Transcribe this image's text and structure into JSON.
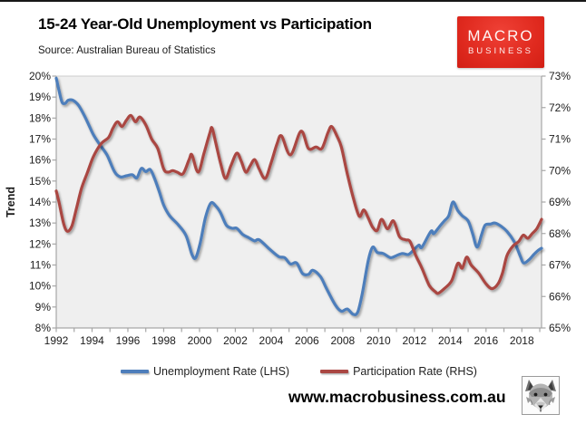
{
  "header": {
    "title": "15-24 Year-Old Unemployment vs Participation",
    "source": "Source: Australian Bureau of Statistics",
    "logo": {
      "line1": "MACRO",
      "line2": "BUSINESS",
      "bg_color": "#e02a1f"
    }
  },
  "footer": {
    "website": "www.macrobusiness.com.au",
    "wolf_logo": "wolf-head-logo"
  },
  "chart_data": {
    "type": "line",
    "title": "15-24 Year-Old Unemployment vs Participation",
    "source": "Australian Bureau of Statistics",
    "plot_bg": "#efefef",
    "grid": false,
    "legend_position": "bottom",
    "x": {
      "min": 1992,
      "max": 2019.1,
      "tick_step": 1,
      "label_step": 2,
      "first_label": 1992,
      "last_label": 2018,
      "last_tick": 2019
    },
    "y_left": {
      "label": "Trend",
      "min": 8,
      "max": 20,
      "tick_step": 1,
      "format": "percent"
    },
    "y_right": {
      "min": 65,
      "max": 73,
      "tick_step": 1,
      "format": "percent"
    },
    "axis_color": "#a6a6a6",
    "tick_label_color": "#1c1c1c",
    "series": [
      {
        "name": "Unemployment Rate (LHS)",
        "axis": "left",
        "color": "#4e7ebb",
        "points": [
          [
            1992.0,
            19.9
          ],
          [
            1992.17,
            19.25
          ],
          [
            1992.33,
            18.75
          ],
          [
            1992.5,
            18.7
          ],
          [
            1992.67,
            18.85
          ],
          [
            1992.92,
            18.85
          ],
          [
            1993.25,
            18.6
          ],
          [
            1993.58,
            18.1
          ],
          [
            1993.83,
            17.65
          ],
          [
            1994.08,
            17.2
          ],
          [
            1994.42,
            16.75
          ],
          [
            1994.83,
            16.25
          ],
          [
            1995.25,
            15.45
          ],
          [
            1995.58,
            15.2
          ],
          [
            1995.92,
            15.25
          ],
          [
            1996.25,
            15.3
          ],
          [
            1996.5,
            15.15
          ],
          [
            1996.75,
            15.6
          ],
          [
            1997.0,
            15.45
          ],
          [
            1997.25,
            15.55
          ],
          [
            1997.5,
            15.1
          ],
          [
            1997.75,
            14.5
          ],
          [
            1998.0,
            13.85
          ],
          [
            1998.33,
            13.35
          ],
          [
            1998.83,
            12.9
          ],
          [
            1999.25,
            12.4
          ],
          [
            1999.58,
            11.5
          ],
          [
            1999.79,
            11.35
          ],
          [
            2000.04,
            12.05
          ],
          [
            2000.33,
            13.25
          ],
          [
            2000.63,
            13.95
          ],
          [
            2000.92,
            13.8
          ],
          [
            2001.17,
            13.5
          ],
          [
            2001.5,
            12.9
          ],
          [
            2001.83,
            12.75
          ],
          [
            2002.08,
            12.75
          ],
          [
            2002.42,
            12.45
          ],
          [
            2002.75,
            12.3
          ],
          [
            2003.08,
            12.15
          ],
          [
            2003.33,
            12.2
          ],
          [
            2003.92,
            11.75
          ],
          [
            2004.42,
            11.4
          ],
          [
            2004.75,
            11.35
          ],
          [
            2005.08,
            11.05
          ],
          [
            2005.42,
            11.1
          ],
          [
            2005.75,
            10.6
          ],
          [
            2006.08,
            10.55
          ],
          [
            2006.33,
            10.75
          ],
          [
            2006.75,
            10.45
          ],
          [
            2007.08,
            9.9
          ],
          [
            2007.58,
            9.1
          ],
          [
            2007.92,
            8.8
          ],
          [
            2008.25,
            8.9
          ],
          [
            2008.58,
            8.65
          ],
          [
            2008.83,
            8.75
          ],
          [
            2009.08,
            9.6
          ],
          [
            2009.42,
            11.2
          ],
          [
            2009.67,
            11.85
          ],
          [
            2009.92,
            11.6
          ],
          [
            2010.25,
            11.55
          ],
          [
            2010.67,
            11.35
          ],
          [
            2011.0,
            11.45
          ],
          [
            2011.33,
            11.55
          ],
          [
            2011.67,
            11.5
          ],
          [
            2012.0,
            11.75
          ],
          [
            2012.25,
            11.95
          ],
          [
            2012.42,
            11.85
          ],
          [
            2012.92,
            12.6
          ],
          [
            2013.08,
            12.5
          ],
          [
            2013.42,
            12.85
          ],
          [
            2013.67,
            13.1
          ],
          [
            2013.92,
            13.35
          ],
          [
            2014.15,
            14.0
          ],
          [
            2014.42,
            13.6
          ],
          [
            2014.67,
            13.35
          ],
          [
            2015.0,
            13.1
          ],
          [
            2015.25,
            12.5
          ],
          [
            2015.5,
            11.85
          ],
          [
            2015.75,
            12.45
          ],
          [
            2015.95,
            12.9
          ],
          [
            2016.25,
            12.95
          ],
          [
            2016.5,
            13.0
          ],
          [
            2016.83,
            12.85
          ],
          [
            2017.17,
            12.6
          ],
          [
            2017.58,
            12.1
          ],
          [
            2017.92,
            11.4
          ],
          [
            2018.1,
            11.1
          ],
          [
            2018.4,
            11.25
          ],
          [
            2018.67,
            11.5
          ],
          [
            2018.92,
            11.7
          ],
          [
            2019.1,
            11.8
          ]
        ]
      },
      {
        "name": "Participation Rate (RHS)",
        "axis": "right",
        "color": "#aa4743",
        "points": [
          [
            1992.0,
            69.35
          ],
          [
            1992.17,
            68.95
          ],
          [
            1992.42,
            68.3
          ],
          [
            1992.63,
            68.07
          ],
          [
            1992.88,
            68.25
          ],
          [
            1993.13,
            68.8
          ],
          [
            1993.42,
            69.45
          ],
          [
            1993.75,
            69.95
          ],
          [
            1994.08,
            70.45
          ],
          [
            1994.5,
            70.85
          ],
          [
            1994.92,
            71.05
          ],
          [
            1995.17,
            71.35
          ],
          [
            1995.42,
            71.55
          ],
          [
            1995.67,
            71.4
          ],
          [
            1995.92,
            71.6
          ],
          [
            1996.17,
            71.75
          ],
          [
            1996.42,
            71.55
          ],
          [
            1996.67,
            71.7
          ],
          [
            1997.0,
            71.45
          ],
          [
            1997.33,
            71.0
          ],
          [
            1997.67,
            70.7
          ],
          [
            1998.0,
            70.05
          ],
          [
            1998.25,
            69.95
          ],
          [
            1998.5,
            70.0
          ],
          [
            1998.75,
            69.95
          ],
          [
            1999.08,
            69.9
          ],
          [
            1999.42,
            70.35
          ],
          [
            1999.58,
            70.5
          ],
          [
            1999.92,
            69.95
          ],
          [
            2000.25,
            70.55
          ],
          [
            2000.58,
            71.2
          ],
          [
            2000.7,
            71.35
          ],
          [
            2000.92,
            70.85
          ],
          [
            2001.17,
            70.25
          ],
          [
            2001.45,
            69.75
          ],
          [
            2001.75,
            70.15
          ],
          [
            2002.08,
            70.55
          ],
          [
            2002.33,
            70.3
          ],
          [
            2002.58,
            69.95
          ],
          [
            2002.83,
            70.15
          ],
          [
            2003.08,
            70.35
          ],
          [
            2003.33,
            70.05
          ],
          [
            2003.67,
            69.75
          ],
          [
            2004.0,
            70.25
          ],
          [
            2004.33,
            70.85
          ],
          [
            2004.58,
            71.1
          ],
          [
            2005.08,
            70.5
          ],
          [
            2005.67,
            71.25
          ],
          [
            2006.08,
            70.7
          ],
          [
            2006.5,
            70.75
          ],
          [
            2006.83,
            70.7
          ],
          [
            2007.17,
            71.2
          ],
          [
            2007.38,
            71.4
          ],
          [
            2007.67,
            71.1
          ],
          [
            2007.92,
            70.75
          ],
          [
            2008.25,
            69.9
          ],
          [
            2008.58,
            69.15
          ],
          [
            2008.92,
            68.55
          ],
          [
            2009.17,
            68.75
          ],
          [
            2009.42,
            68.5
          ],
          [
            2009.67,
            68.2
          ],
          [
            2009.92,
            68.1
          ],
          [
            2010.17,
            68.45
          ],
          [
            2010.5,
            68.15
          ],
          [
            2010.83,
            68.4
          ],
          [
            2011.17,
            67.9
          ],
          [
            2011.5,
            67.8
          ],
          [
            2011.75,
            67.75
          ],
          [
            2012.08,
            67.3
          ],
          [
            2012.42,
            66.9
          ],
          [
            2012.83,
            66.35
          ],
          [
            2013.17,
            66.15
          ],
          [
            2013.33,
            66.1
          ],
          [
            2013.67,
            66.25
          ],
          [
            2014.08,
            66.5
          ],
          [
            2014.42,
            67.05
          ],
          [
            2014.67,
            66.9
          ],
          [
            2014.92,
            67.25
          ],
          [
            2015.17,
            67.0
          ],
          [
            2015.58,
            66.75
          ],
          [
            2016.0,
            66.4
          ],
          [
            2016.33,
            66.25
          ],
          [
            2016.67,
            66.4
          ],
          [
            2016.92,
            66.75
          ],
          [
            2017.17,
            67.3
          ],
          [
            2017.5,
            67.6
          ],
          [
            2017.83,
            67.75
          ],
          [
            2018.08,
            67.95
          ],
          [
            2018.33,
            67.85
          ],
          [
            2018.58,
            68.0
          ],
          [
            2018.83,
            68.15
          ],
          [
            2019.1,
            68.45
          ]
        ]
      }
    ]
  }
}
